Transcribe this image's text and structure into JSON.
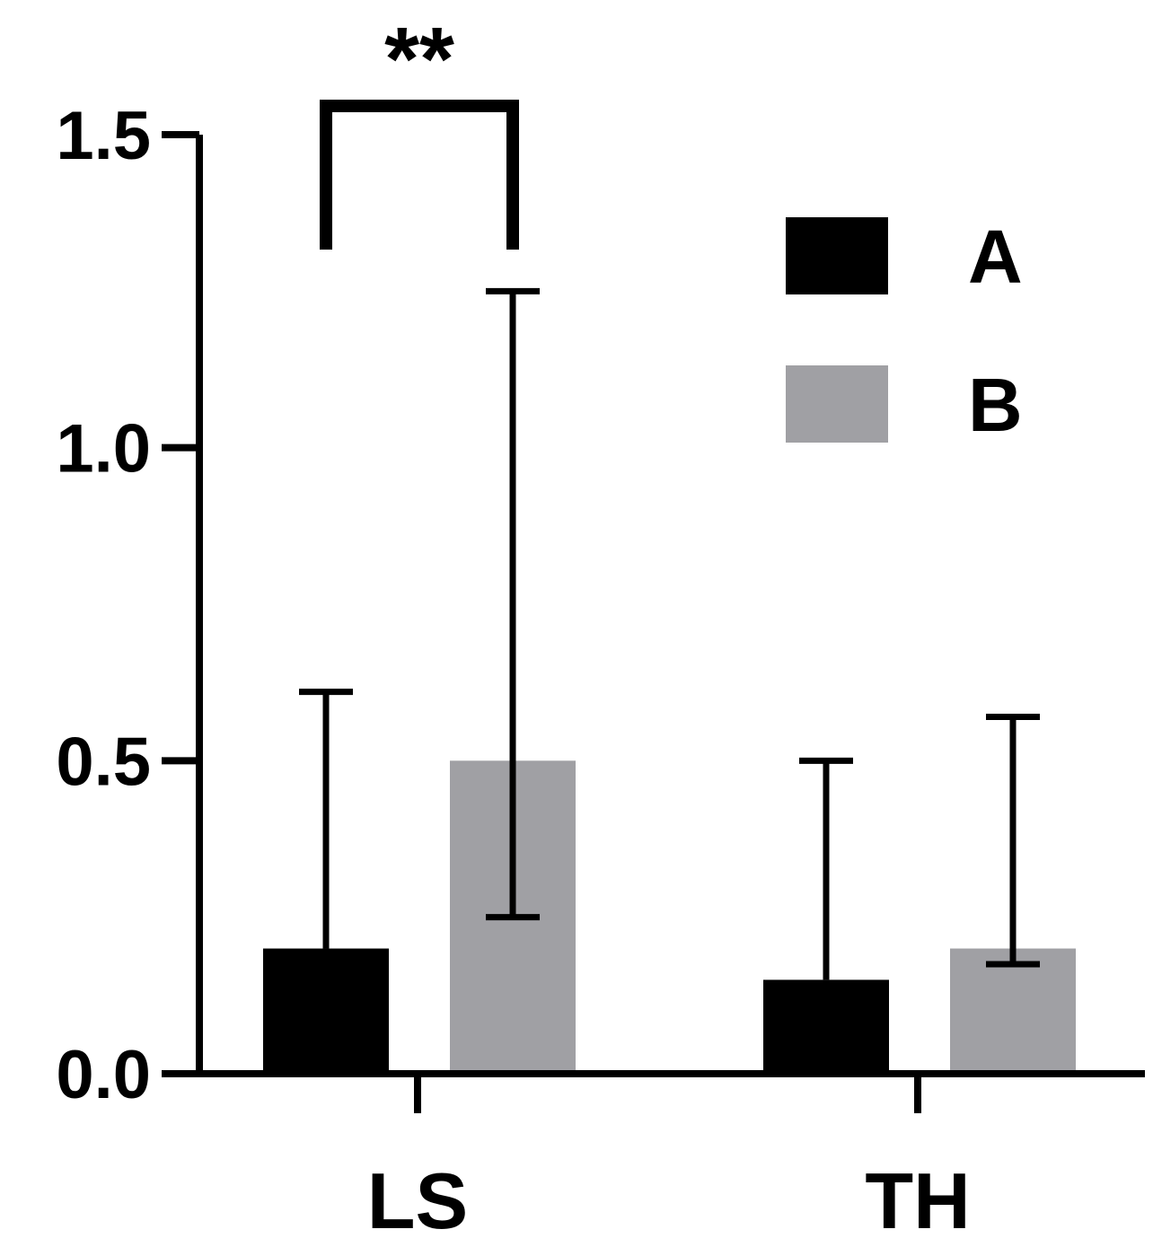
{
  "chart_data": {
    "type": "bar",
    "title": "",
    "xlabel": "",
    "ylabel": "",
    "ylim": [
      0,
      1.5
    ],
    "yticks": [
      "0.0",
      "0.5",
      "1.0",
      "1.5"
    ],
    "categories": [
      "LS",
      "TH"
    ],
    "series": [
      {
        "name": "A",
        "color": "#000000",
        "values": [
          0.2,
          0.15
        ],
        "error_upper": [
          0.61,
          0.5
        ],
        "error_lower": [
          null,
          null
        ]
      },
      {
        "name": "B",
        "color": "#a0a0a4",
        "values": [
          0.5,
          0.2
        ],
        "error_upper": [
          1.25,
          0.57
        ],
        "error_lower": [
          0.25,
          0.175
        ]
      }
    ],
    "significance": [
      {
        "category": "LS",
        "between": [
          "A",
          "B"
        ],
        "label": "**"
      }
    ],
    "legend": {
      "position": "top-right"
    },
    "grid": false
  }
}
